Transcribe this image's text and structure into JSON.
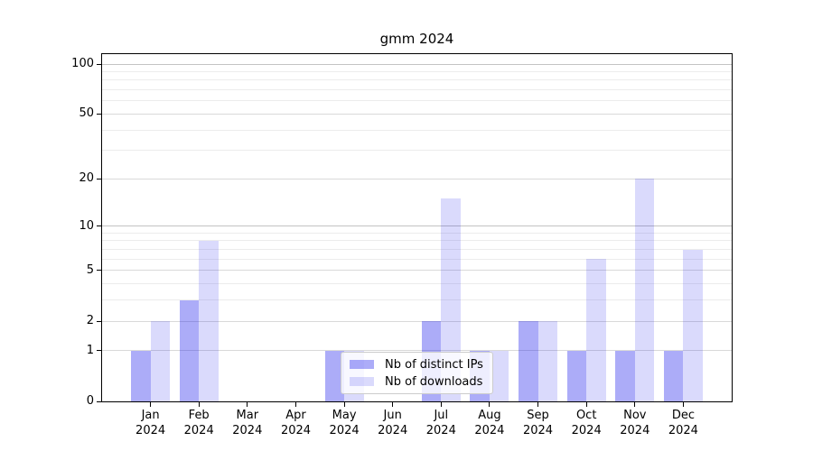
{
  "chart_data": {
    "type": "bar",
    "title": "gmm 2024",
    "categories": [
      "Jan",
      "Feb",
      "Mar",
      "Apr",
      "May",
      "Jun",
      "Jul",
      "Aug",
      "Sep",
      "Oct",
      "Nov",
      "Dec"
    ],
    "x_tick_year": "2024",
    "series": [
      {
        "name": "Nb of distinct IPs",
        "color": "rgba(18,18,236,0.35)",
        "values": [
          1,
          3,
          0,
          0,
          1,
          0,
          2,
          1,
          2,
          1,
          1,
          1
        ]
      },
      {
        "name": "Nb of downloads",
        "color": "rgba(18,18,236,0.155)",
        "values": [
          2,
          8,
          0,
          0,
          1,
          0,
          15,
          1,
          2,
          6,
          20,
          7
        ]
      }
    ],
    "y_axis": {
      "scale": "log10(1+value)",
      "tick_values": [
        0,
        1,
        2,
        5,
        10,
        20,
        50,
        100
      ],
      "tick_labels": [
        "0",
        "1",
        "2",
        "5",
        "10",
        "20",
        "50",
        "100"
      ],
      "range_max": 115
    },
    "grid": {
      "orientation": "horizontal",
      "minor_values": [
        3,
        4,
        6,
        7,
        8,
        9,
        30,
        40,
        60,
        70,
        80,
        90
      ],
      "medium_values": [
        1,
        2,
        5,
        20,
        50
      ],
      "major_values": [
        10,
        100
      ],
      "minor_color": "#ececec",
      "medium_color": "#d9d9d9",
      "major_color": "#c3c3c3"
    },
    "legend_position": "inside lower-center",
    "background_color": "#ffffff",
    "spine_color": "#000000"
  }
}
